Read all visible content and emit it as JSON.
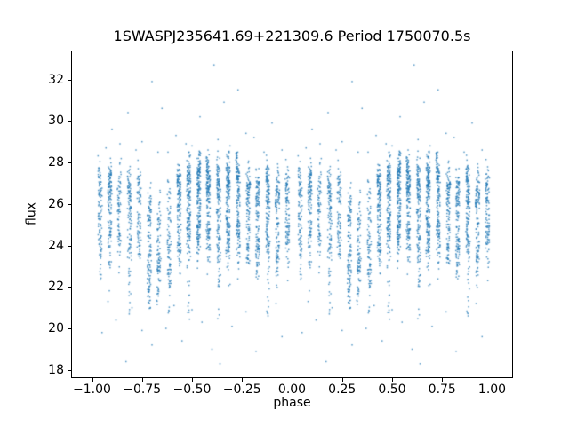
{
  "figure": {
    "background_color": "#ffffff",
    "text_color": "#000000",
    "spine_color": "#000000"
  },
  "chart_data": {
    "type": "scatter",
    "title": "1SWASPJ235641.69+221309.6 Period 1750070.5s",
    "xlabel": "phase",
    "ylabel": "flux",
    "xlim": [
      -1.1,
      1.1
    ],
    "ylim": [
      17.65,
      33.35
    ],
    "x_ticks": [
      -1.0,
      -0.75,
      -0.5,
      -0.25,
      0.0,
      0.25,
      0.5,
      0.75,
      1.0
    ],
    "x_tick_labels": [
      "−1.00",
      "−0.75",
      "−0.50",
      "−0.25",
      "0.00",
      "0.25",
      "0.50",
      "0.75",
      "1.00"
    ],
    "y_ticks": [
      18,
      20,
      22,
      24,
      26,
      28,
      30,
      32
    ],
    "y_tick_labels": [
      "18",
      "20",
      "22",
      "24",
      "26",
      "28",
      "30",
      "32"
    ],
    "grid": false,
    "legend": null,
    "marker_color": "#1f77b4",
    "marker_size_px": 1.5,
    "marker_alpha": 0.75,
    "note": "Folded light curve; every observation night forms a vertical stripe of points, and each point is plotted twice, at phase and phase-1.",
    "fold_duplicate_offset": -1,
    "seed": 7,
    "stripe_halfwidth_phase": 0.009,
    "stripe_components": {
      "hi": {
        "mean": 27.0,
        "sigma": 0.62,
        "frac": 0.56,
        "frac_when_low": 0.38
      },
      "lo": {
        "mean": 24.6,
        "sigma": 0.85
      }
    },
    "flux_clip_high": 28.55,
    "flux_clip_low": 21.0,
    "stripes": [
      {
        "phase": 0.04,
        "count": 110,
        "flux_shift": -0.2,
        "low_tail": false
      },
      {
        "phase": 0.089,
        "count": 130,
        "flux_shift": 0.0,
        "low_tail": false
      },
      {
        "phase": 0.137,
        "count": 80,
        "flux_shift": -0.4,
        "low_tail": false
      },
      {
        "phase": 0.188,
        "count": 110,
        "flux_shift": -0.5,
        "low_tail": true
      },
      {
        "phase": 0.236,
        "count": 90,
        "flux_shift": -0.2,
        "low_tail": false
      },
      {
        "phase": 0.287,
        "count": 120,
        "flux_shift": -1.6,
        "low_tail": true
      },
      {
        "phase": 0.334,
        "count": 90,
        "flux_shift": -1.8,
        "low_tail": false
      },
      {
        "phase": 0.386,
        "count": 80,
        "flux_shift": -1.2,
        "low_tail": true
      },
      {
        "phase": 0.435,
        "count": 160,
        "flux_shift": -0.1,
        "low_tail": false
      },
      {
        "phase": 0.483,
        "count": 170,
        "flux_shift": 0.2,
        "low_tail": true
      },
      {
        "phase": 0.534,
        "count": 200,
        "flux_shift": 0.3,
        "low_tail": false
      },
      {
        "phase": 0.581,
        "count": 180,
        "flux_shift": 0.1,
        "low_tail": false
      },
      {
        "phase": 0.633,
        "count": 150,
        "flux_shift": -0.2,
        "low_tail": true
      },
      {
        "phase": 0.68,
        "count": 210,
        "flux_shift": 0.2,
        "low_tail": false
      },
      {
        "phase": 0.73,
        "count": 170,
        "flux_shift": 0.1,
        "low_tail": false
      },
      {
        "phase": 0.781,
        "count": 130,
        "flux_shift": -0.3,
        "low_tail": false
      },
      {
        "phase": 0.828,
        "count": 140,
        "flux_shift": -0.5,
        "low_tail": false
      },
      {
        "phase": 0.879,
        "count": 150,
        "flux_shift": -0.2,
        "low_tail": true
      },
      {
        "phase": 0.927,
        "count": 130,
        "flux_shift": -0.4,
        "low_tail": false
      },
      {
        "phase": 0.977,
        "count": 110,
        "flux_shift": -0.1,
        "low_tail": false
      }
    ],
    "outliers_high": [
      [
        0.61,
        32.7
      ],
      [
        0.3,
        31.9
      ],
      [
        0.73,
        31.5
      ],
      [
        0.66,
        30.9
      ],
      [
        0.35,
        30.6
      ],
      [
        0.54,
        30.2
      ],
      [
        0.9,
        29.9
      ],
      [
        0.18,
        30.4
      ],
      [
        0.1,
        29.6
      ],
      [
        0.42,
        29.3
      ],
      [
        0.81,
        29.2
      ],
      [
        0.25,
        29.0
      ],
      [
        0.47,
        28.9
      ],
      [
        0.07,
        28.7
      ],
      [
        0.58,
        28.6
      ],
      [
        0.69,
        28.8
      ],
      [
        0.86,
        28.5
      ],
      [
        0.95,
        28.6
      ],
      [
        0.38,
        28.5
      ],
      [
        0.14,
        28.9
      ],
      [
        0.77,
        29.4
      ],
      [
        0.22,
        28.6
      ],
      [
        0.5,
        28.8
      ],
      [
        0.63,
        29.1
      ],
      [
        0.33,
        28.5
      ]
    ],
    "outliers_low": [
      [
        0.17,
        18.4
      ],
      [
        0.64,
        18.3
      ],
      [
        0.82,
        18.9
      ],
      [
        0.3,
        19.2
      ],
      [
        0.95,
        19.6
      ],
      [
        0.05,
        19.8
      ],
      [
        0.45,
        19.4
      ],
      [
        0.7,
        20.1
      ],
      [
        0.25,
        19.9
      ],
      [
        0.55,
        20.3
      ],
      [
        0.88,
        20.6
      ],
      [
        0.12,
        20.4
      ],
      [
        0.37,
        20.0
      ],
      [
        0.6,
        19.0
      ],
      [
        0.77,
        20.8
      ],
      [
        0.2,
        21.0
      ],
      [
        0.5,
        20.9
      ],
      [
        0.92,
        21.2
      ],
      [
        0.08,
        21.3
      ],
      [
        0.41,
        21.1
      ]
    ]
  }
}
